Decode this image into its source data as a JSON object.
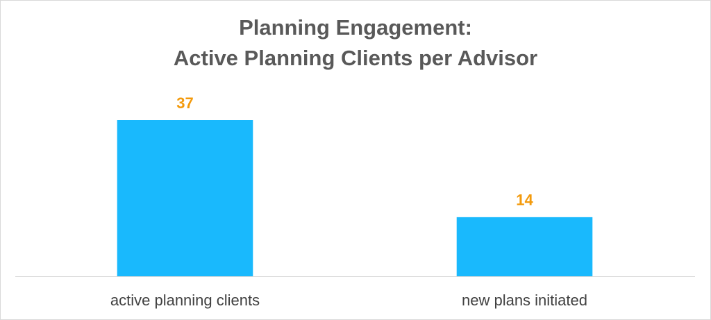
{
  "chart_data": {
    "type": "bar",
    "title": [
      "Planning Engagement:",
      "Active Planning Clients per Advisor"
    ],
    "categories": [
      "active planning clients",
      "new plans initiated"
    ],
    "values": [
      37,
      14
    ],
    "color": "#19b9fd",
    "label_color": "#f39a0c"
  }
}
